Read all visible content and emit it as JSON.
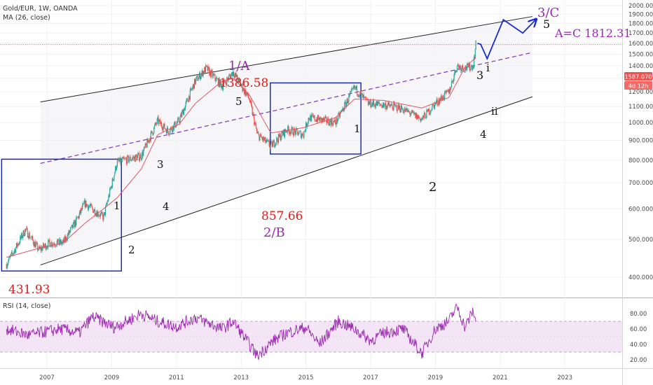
{
  "header": {
    "symbol": "Gold/EUR, 1W, OANDA",
    "ma_label": "MA (26, close)",
    "rsi_label": "RSI (14, close)"
  },
  "price_badge": {
    "price": "1587.070",
    "countdown": "4d 12h"
  },
  "colors": {
    "candle_up": "#26a69a",
    "candle_down": "#ef5350",
    "ma_line": "#e05565",
    "channel": "#222222",
    "midline": "#8a3fbf",
    "box": "#1020b8",
    "projection": "#1a2ad0",
    "rsi_line": "#9c27b0",
    "rsi_band": "#f3e5f5",
    "price_line": "#ef5350"
  },
  "annotations": {
    "low_2005": "431.93",
    "wave1_2008": "1",
    "wave2_2008": "2",
    "wave3_2010": "3",
    "wave4_2010": "4",
    "wave5_2012": "5",
    "peak_1a_label": "1/A",
    "peak_1a_value": "1386.58",
    "low_2b_value": "857.66",
    "low_2b_label": "2/B",
    "wave1_2016": "1",
    "wave2_2018": "2",
    "wave3_2020": "3",
    "wave4_2020": "4",
    "wave_i": "i",
    "wave_ii": "ii",
    "wave_3c": "3/C",
    "wave5_proj": "5",
    "target": "A=C 1812.31"
  },
  "chart_data": [
    {
      "type": "line",
      "title": "Gold/EUR, 1W, OANDA",
      "series": [
        {
          "name": "Gold/EUR",
          "x": [
            "2005-10",
            "2006-01",
            "2006-05",
            "2006-10",
            "2007-02",
            "2007-07",
            "2007-12",
            "2008-03",
            "2008-10",
            "2009-03",
            "2009-12",
            "2010-06",
            "2010-10",
            "2011-02",
            "2011-08",
            "2011-12",
            "2012-06",
            "2012-10",
            "2013-04",
            "2013-07",
            "2013-12",
            "2014-06",
            "2014-12",
            "2015-02",
            "2015-12",
            "2016-07",
            "2016-12",
            "2017-06",
            "2017-12",
            "2018-08",
            "2019-01",
            "2019-06",
            "2019-09",
            "2019-12",
            "2020-03",
            "2020-04"
          ],
          "y": [
            431.93,
            470,
            530,
            470,
            490,
            490,
            560,
            620,
            570,
            790,
            820,
            1010,
            950,
            1010,
            1280,
            1380,
            1240,
            1350,
            1150,
            930,
            870,
            960,
            930,
            1030,
            1000,
            1230,
            1120,
            1110,
            1090,
            1020,
            1120,
            1200,
            1400,
            1380,
            1400,
            1587
          ]
        },
        {
          "name": "MA (26, close)",
          "x": [
            "2005-10",
            "2006-10",
            "2007-07",
            "2008-03",
            "2008-10",
            "2009-03",
            "2009-12",
            "2010-06",
            "2011-02",
            "2011-08",
            "2012-06",
            "2012-10",
            "2013-04",
            "2013-12",
            "2014-12",
            "2015-12",
            "2016-07",
            "2017-06",
            "2018-08",
            "2019-06",
            "2019-12",
            "2020-04"
          ],
          "y": [
            450,
            475,
            490,
            550,
            600,
            640,
            760,
            930,
            990,
            1120,
            1280,
            1300,
            1180,
            940,
            970,
            1030,
            1150,
            1140,
            1090,
            1160,
            1390,
            1470
          ]
        }
      ],
      "ylim": [
        350,
        2050
      ],
      "y_ticks": [
        "2000.000",
        "1900.000",
        "1800.000",
        "1700.000",
        "1600.000",
        "1500.000",
        "1400.000",
        "1300.000",
        "1200.000",
        "1100.000",
        "1000.000",
        "900.000",
        "800.000",
        "700.000",
        "600.000",
        "500.000",
        "400.000"
      ],
      "x_ticks": [
        "2007",
        "2009",
        "2011",
        "2013",
        "2015",
        "2017",
        "2019",
        "2021",
        "2023"
      ],
      "channel": {
        "upper": [
          [
            2006.8,
            1130
          ],
          [
            2022.0,
            1875
          ]
        ],
        "lower": [
          [
            2006.8,
            430
          ],
          [
            2022.0,
            1165
          ]
        ],
        "mid": [
          [
            2006.8,
            785
          ],
          [
            2022.0,
            1515
          ]
        ]
      },
      "boxes": [
        {
          "x": [
            2005.6,
            2009.3
          ],
          "y": [
            415,
            805
          ]
        },
        {
          "x": [
            2013.9,
            2016.7
          ],
          "y": [
            830,
            1265
          ]
        }
      ],
      "projection": {
        "x": [
          2020.3,
          2020.4,
          2020.6,
          2021.1,
          2021.7,
          2022.1
        ],
        "y": [
          1600,
          1590,
          1460,
          1840,
          1700,
          1840
        ]
      }
    },
    {
      "type": "line",
      "title": "RSI (14, close)",
      "series": [
        {
          "name": "RSI (14, close)",
          "x": [
            "2005-10",
            "2006-06",
            "2007-06",
            "2008-01",
            "2008-06",
            "2009-02",
            "2009-12",
            "2010-06",
            "2011-01",
            "2011-08",
            "2012-06",
            "2012-10",
            "2013-04",
            "2013-07",
            "2014-01",
            "2014-06",
            "2015-01",
            "2015-06",
            "2016-01",
            "2016-07",
            "2017-01",
            "2017-06",
            "2018-01",
            "2018-08",
            "2019-01",
            "2019-06",
            "2019-09",
            "2019-12",
            "2020-03",
            "2020-04"
          ],
          "y": [
            60,
            52,
            60,
            55,
            76,
            62,
            80,
            70,
            63,
            75,
            60,
            70,
            40,
            25,
            45,
            55,
            62,
            40,
            70,
            60,
            45,
            55,
            60,
            28,
            60,
            70,
            90,
            62,
            84,
            68
          ]
        }
      ],
      "ylim": [
        15,
        95
      ],
      "y_ticks": [
        "80.00",
        "60.00",
        "40.00",
        "20.00"
      ],
      "bands": [
        30,
        70
      ]
    }
  ]
}
